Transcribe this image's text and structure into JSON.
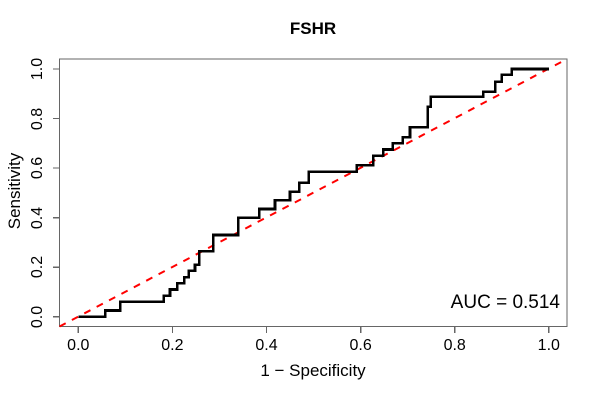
{
  "title": "FSHR",
  "x_axis": {
    "label": "1 − Specificity",
    "tick_labels": [
      "0.0",
      "0.2",
      "0.4",
      "0.6",
      "0.8",
      "1.0"
    ],
    "tick_values": [
      0.0,
      0.2,
      0.4,
      0.6,
      0.8,
      1.0
    ]
  },
  "y_axis": {
    "label": "Sensitivity",
    "tick_labels": [
      "0.0",
      "0.2",
      "0.4",
      "0.6",
      "0.8",
      "1.0"
    ],
    "tick_values": [
      0.0,
      0.2,
      0.4,
      0.6,
      0.8,
      1.0
    ]
  },
  "annotation": {
    "auc_label": "AUC = 0.514"
  },
  "colors": {
    "roc_curve": "#000000",
    "diagonal": "#ff0000",
    "frame": "#666666",
    "text": "#000000",
    "background": "#ffffff"
  },
  "chart_data": {
    "type": "line",
    "subtype": "roc-step-curve",
    "title": "FSHR",
    "xlabel": "1 − Specificity",
    "ylabel": "Sensitivity",
    "xlim": [
      -0.04,
      1.04
    ],
    "ylim": [
      -0.04,
      1.04
    ],
    "grid": false,
    "legend_position": "none",
    "auc": 0.514,
    "x_ticks": [
      0.0,
      0.2,
      0.4,
      0.6,
      0.8,
      1.0
    ],
    "y_ticks": [
      0.0,
      0.2,
      0.4,
      0.6,
      0.8,
      1.0
    ],
    "series": [
      {
        "name": "ROC step curve",
        "style": "step-solid",
        "color": "#000000",
        "line_width": 2.6,
        "points": [
          [
            0.0,
            0.0
          ],
          [
            0.057,
            0.025
          ],
          [
            0.089,
            0.06
          ],
          [
            0.182,
            0.085
          ],
          [
            0.195,
            0.11
          ],
          [
            0.21,
            0.135
          ],
          [
            0.225,
            0.16
          ],
          [
            0.235,
            0.185
          ],
          [
            0.248,
            0.21
          ],
          [
            0.257,
            0.265
          ],
          [
            0.287,
            0.33
          ],
          [
            0.34,
            0.4
          ],
          [
            0.385,
            0.435
          ],
          [
            0.418,
            0.47
          ],
          [
            0.45,
            0.505
          ],
          [
            0.47,
            0.54
          ],
          [
            0.49,
            0.585
          ],
          [
            0.592,
            0.612
          ],
          [
            0.627,
            0.65
          ],
          [
            0.648,
            0.675
          ],
          [
            0.668,
            0.7
          ],
          [
            0.69,
            0.725
          ],
          [
            0.705,
            0.765
          ],
          [
            0.743,
            0.848
          ],
          [
            0.749,
            0.888
          ],
          [
            0.861,
            0.908
          ],
          [
            0.886,
            0.949
          ],
          [
            0.9,
            0.976
          ],
          [
            0.921,
            1.0
          ],
          [
            1.0,
            1.0
          ]
        ]
      },
      {
        "name": "Chance diagonal",
        "style": "dashed",
        "color": "#ff0000",
        "line_width": 2,
        "points": [
          [
            -0.04,
            -0.04
          ],
          [
            1.04,
            1.04
          ]
        ]
      }
    ]
  }
}
